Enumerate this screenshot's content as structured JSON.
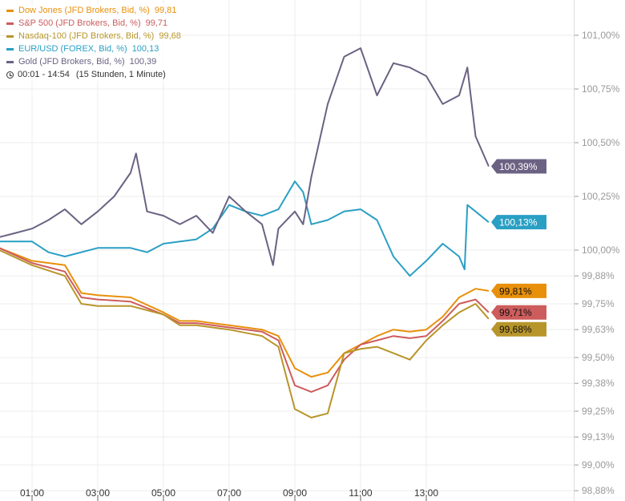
{
  "chart_data": {
    "type": "line",
    "time_range_label": "00:01 - 14:54",
    "duration_label": "(15 Stunden, 1 Minute)",
    "x_ticks": [
      "01:00",
      "03:00",
      "05:00",
      "07:00",
      "09:00",
      "11:00",
      "13:00"
    ],
    "y_ticks": [
      "101,00%",
      "100,75%",
      "100,50%",
      "100,25%",
      "100,00%",
      "99,88%",
      "99,75%",
      "99,63%",
      "99,50%",
      "99,38%",
      "99,25%",
      "99,13%",
      "99,00%",
      "98,88%"
    ],
    "y_tick_values": [
      101.0,
      100.75,
      100.5,
      100.25,
      100.0,
      99.88,
      99.75,
      99.63,
      99.5,
      99.38,
      99.25,
      99.13,
      99.0,
      98.88
    ],
    "ylim": [
      98.86,
      101.16
    ],
    "xlim": [
      "00:00",
      "15:30"
    ],
    "grid": true,
    "legend_placement": "top-left",
    "series": [
      {
        "name": "Dow Jones (JFD Brokers, Bid, %)",
        "last": "99,81",
        "last_label": "99,81%",
        "color": "#e8900c",
        "points": [
          [
            "00:00",
            100.01
          ],
          [
            "01:00",
            99.95
          ],
          [
            "02:00",
            99.93
          ],
          [
            "02:30",
            99.8
          ],
          [
            "03:00",
            99.79
          ],
          [
            "04:00",
            99.78
          ],
          [
            "05:00",
            99.71
          ],
          [
            "05:30",
            99.67
          ],
          [
            "06:00",
            99.67
          ],
          [
            "07:00",
            99.65
          ],
          [
            "08:00",
            99.63
          ],
          [
            "08:30",
            99.6
          ],
          [
            "09:00",
            99.45
          ],
          [
            "09:30",
            99.41
          ],
          [
            "10:00",
            99.43
          ],
          [
            "10:30",
            99.52
          ],
          [
            "11:00",
            99.56
          ],
          [
            "11:30",
            99.6
          ],
          [
            "12:00",
            99.63
          ],
          [
            "12:30",
            99.62
          ],
          [
            "13:00",
            99.63
          ],
          [
            "13:30",
            99.69
          ],
          [
            "14:00",
            99.78
          ],
          [
            "14:30",
            99.82
          ],
          [
            "14:54",
            99.81
          ]
        ]
      },
      {
        "name": "S&P 500 (JFD Brokers, Bid, %)",
        "last": "99,71",
        "last_label": "99,71%",
        "color": "#cd5c5c",
        "points": [
          [
            "00:00",
            100.01
          ],
          [
            "01:00",
            99.94
          ],
          [
            "02:00",
            99.9
          ],
          [
            "02:30",
            99.78
          ],
          [
            "03:00",
            99.77
          ],
          [
            "04:00",
            99.76
          ],
          [
            "05:00",
            99.7
          ],
          [
            "05:30",
            99.66
          ],
          [
            "06:00",
            99.66
          ],
          [
            "07:00",
            99.64
          ],
          [
            "08:00",
            99.62
          ],
          [
            "08:30",
            99.58
          ],
          [
            "09:00",
            99.37
          ],
          [
            "09:30",
            99.34
          ],
          [
            "10:00",
            99.37
          ],
          [
            "10:30",
            99.49
          ],
          [
            "11:00",
            99.56
          ],
          [
            "11:30",
            99.58
          ],
          [
            "12:00",
            99.6
          ],
          [
            "12:30",
            99.59
          ],
          [
            "13:00",
            99.6
          ],
          [
            "13:30",
            99.67
          ],
          [
            "14:00",
            99.75
          ],
          [
            "14:30",
            99.77
          ],
          [
            "14:54",
            99.71
          ]
        ]
      },
      {
        "name": "Nasdaq-100 (JFD Brokers, Bid, %)",
        "last": "99,68",
        "last_label": "99,68%",
        "color": "#b8952a",
        "points": [
          [
            "00:00",
            100.0
          ],
          [
            "01:00",
            99.93
          ],
          [
            "02:00",
            99.88
          ],
          [
            "02:30",
            99.75
          ],
          [
            "03:00",
            99.74
          ],
          [
            "04:00",
            99.74
          ],
          [
            "05:00",
            99.7
          ],
          [
            "05:30",
            99.65
          ],
          [
            "06:00",
            99.65
          ],
          [
            "07:00",
            99.63
          ],
          [
            "08:00",
            99.6
          ],
          [
            "08:30",
            99.55
          ],
          [
            "09:00",
            99.26
          ],
          [
            "09:30",
            99.22
          ],
          [
            "10:00",
            99.24
          ],
          [
            "10:30",
            99.52
          ],
          [
            "11:00",
            99.54
          ],
          [
            "11:30",
            99.55
          ],
          [
            "12:00",
            99.52
          ],
          [
            "12:30",
            99.49
          ],
          [
            "13:00",
            99.58
          ],
          [
            "13:30",
            99.65
          ],
          [
            "14:00",
            99.71
          ],
          [
            "14:30",
            99.75
          ],
          [
            "14:54",
            99.68
          ]
        ]
      },
      {
        "name": "EUR/USD (FOREX, Bid, %)",
        "last": "100,13",
        "last_label": "100,13%",
        "color": "#2a9fc4",
        "points": [
          [
            "00:00",
            100.04
          ],
          [
            "01:00",
            100.04
          ],
          [
            "01:30",
            99.99
          ],
          [
            "02:00",
            99.97
          ],
          [
            "03:00",
            100.01
          ],
          [
            "04:00",
            100.01
          ],
          [
            "04:30",
            99.99
          ],
          [
            "05:00",
            100.03
          ],
          [
            "06:00",
            100.05
          ],
          [
            "06:30",
            100.1
          ],
          [
            "07:00",
            100.21
          ],
          [
            "07:30",
            100.18
          ],
          [
            "08:00",
            100.16
          ],
          [
            "08:30",
            100.19
          ],
          [
            "09:00",
            100.32
          ],
          [
            "09:15",
            100.27
          ],
          [
            "09:30",
            100.12
          ],
          [
            "10:00",
            100.14
          ],
          [
            "10:30",
            100.18
          ],
          [
            "11:00",
            100.19
          ],
          [
            "11:30",
            100.14
          ],
          [
            "12:00",
            99.97
          ],
          [
            "12:30",
            99.88
          ],
          [
            "13:00",
            99.95
          ],
          [
            "13:30",
            100.03
          ],
          [
            "14:00",
            99.97
          ],
          [
            "14:10",
            99.91
          ],
          [
            "14:15",
            100.21
          ],
          [
            "14:30",
            100.18
          ],
          [
            "14:54",
            100.13
          ]
        ]
      },
      {
        "name": "Gold (JFD Brokers, Bid, %)",
        "last": "100,39",
        "last_label": "100,39%",
        "color": "#6b6283",
        "points": [
          [
            "00:00",
            100.06
          ],
          [
            "00:30",
            100.08
          ],
          [
            "01:00",
            100.1
          ],
          [
            "01:30",
            100.14
          ],
          [
            "02:00",
            100.19
          ],
          [
            "02:30",
            100.12
          ],
          [
            "03:00",
            100.18
          ],
          [
            "03:30",
            100.25
          ],
          [
            "04:00",
            100.36
          ],
          [
            "04:10",
            100.45
          ],
          [
            "04:30",
            100.18
          ],
          [
            "05:00",
            100.16
          ],
          [
            "05:30",
            100.12
          ],
          [
            "06:00",
            100.16
          ],
          [
            "06:30",
            100.08
          ],
          [
            "07:00",
            100.25
          ],
          [
            "07:30",
            100.18
          ],
          [
            "08:00",
            100.12
          ],
          [
            "08:20",
            99.93
          ],
          [
            "08:30",
            100.1
          ],
          [
            "09:00",
            100.18
          ],
          [
            "09:15",
            100.12
          ],
          [
            "09:30",
            100.34
          ],
          [
            "10:00",
            100.68
          ],
          [
            "10:30",
            100.9
          ],
          [
            "11:00",
            100.94
          ],
          [
            "11:30",
            100.72
          ],
          [
            "12:00",
            100.87
          ],
          [
            "12:30",
            100.85
          ],
          [
            "13:00",
            100.81
          ],
          [
            "13:30",
            100.68
          ],
          [
            "14:00",
            100.72
          ],
          [
            "14:15",
            100.85
          ],
          [
            "14:30",
            100.53
          ],
          [
            "14:54",
            100.39
          ]
        ]
      }
    ]
  }
}
